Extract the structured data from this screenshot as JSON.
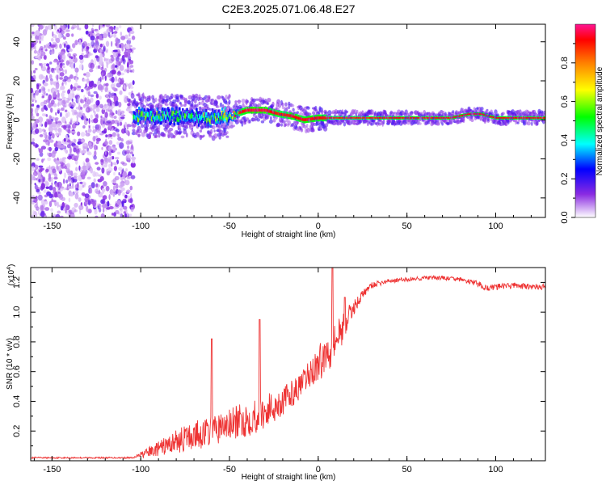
{
  "page_title": "C2E3.2025.071.06.48.E27",
  "chart_data": [
    {
      "type": "heatmap",
      "xlabel": "Height of straight line (km)",
      "ylabel": "Frequency (Hz)",
      "xlim": [
        -162,
        128
      ],
      "ylim": [
        -50,
        49
      ],
      "xticks": [
        -150,
        -100,
        -50,
        0,
        50,
        100
      ],
      "yticks": [
        -40,
        -20,
        0,
        20,
        40
      ],
      "xtick_labels": [
        "-150",
        "-100",
        "-50",
        "0",
        "50",
        "100"
      ],
      "ytick_labels": [
        "-40",
        "-20",
        "0",
        "20",
        "40"
      ],
      "ridge": {
        "x": [
          -104,
          -90,
          -75,
          -60,
          -50,
          -40,
          -30,
          -22,
          -15,
          -8,
          0,
          10,
          25,
          50,
          75,
          85,
          92,
          100,
          128
        ],
        "center_hz": [
          2,
          2,
          2,
          1,
          2,
          5,
          5,
          3,
          2,
          0,
          1,
          1,
          1,
          1,
          1,
          3,
          3,
          1,
          1
        ],
        "amplitude": [
          0.55,
          0.55,
          0.5,
          0.55,
          0.7,
          0.95,
          0.95,
          0.85,
          0.9,
          0.9,
          0.9,
          0.85,
          0.85,
          0.88,
          0.88,
          0.9,
          0.9,
          0.88,
          0.88
        ]
      },
      "noise_region_x": [
        -162,
        -104
      ],
      "colorbar": {
        "label": "Normalized spectral amplitude",
        "ticks": [
          0.0,
          0.2,
          0.4,
          0.6,
          0.8
        ],
        "tick_labels": [
          "0.0",
          "0.2",
          "0.4",
          "0.6",
          "0.8"
        ],
        "range": [
          0,
          1
        ],
        "colors": [
          "#ffffff",
          "#8a2be2",
          "#0000ff",
          "#00ffff",
          "#00ff00",
          "#ffff00",
          "#ff8000",
          "#ff0000",
          "#ff1493"
        ]
      }
    },
    {
      "type": "line",
      "xlabel": "Height of straight line (km)",
      "ylabel": "SNR (10 * v/v)",
      "multiplier": "(x10",
      "multiplier_exp": "4",
      "multiplier_close": ")",
      "xlim": [
        -162,
        128
      ],
      "ylim": [
        0,
        1.3
      ],
      "xticks": [
        -150,
        -100,
        -50,
        0,
        50,
        100
      ],
      "yticks": [
        0.2,
        0.4,
        0.6,
        0.8,
        1.0,
        1.2
      ],
      "xtick_labels": [
        "-150",
        "-100",
        "-50",
        "0",
        "50",
        "100"
      ],
      "ytick_labels": [
        "0.2",
        "0.4",
        "0.6",
        "0.8",
        "1.0",
        "1.2"
      ],
      "color": "#ee3333",
      "series": [
        {
          "x": [
            -162,
            -150,
            -130,
            -110,
            -104,
            -100,
            -90,
            -80,
            -70,
            -60,
            -50,
            -40,
            -30,
            -20,
            -10,
            -5,
            0,
            5,
            10,
            15,
            20,
            25,
            30,
            40,
            50,
            60,
            70,
            80,
            90,
            95,
            100,
            110,
            120,
            128
          ],
          "y": [
            0.02,
            0.02,
            0.02,
            0.02,
            0.02,
            0.04,
            0.08,
            0.13,
            0.17,
            0.2,
            0.24,
            0.28,
            0.33,
            0.4,
            0.5,
            0.58,
            0.65,
            0.73,
            0.82,
            0.92,
            1.03,
            1.12,
            1.18,
            1.21,
            1.22,
            1.23,
            1.23,
            1.22,
            1.19,
            1.16,
            1.17,
            1.18,
            1.17,
            1.17
          ],
          "noise": [
            0.005,
            0.005,
            0.005,
            0.005,
            0.005,
            0.02,
            0.05,
            0.08,
            0.1,
            0.1,
            0.11,
            0.12,
            0.12,
            0.1,
            0.08,
            0.1,
            0.12,
            0.14,
            0.13,
            0.1,
            0.05,
            0.03,
            0.02,
            0.015,
            0.015,
            0.015,
            0.015,
            0.015,
            0.02,
            0.02,
            0.02,
            0.02,
            0.02,
            0.02
          ]
        }
      ],
      "spikes": [
        {
          "x": -60,
          "y": 0.82
        },
        {
          "x": -33,
          "y": 0.95
        },
        {
          "x": 8,
          "y": 1.3
        },
        {
          "x": 15,
          "y": 1.1
        }
      ]
    }
  ]
}
